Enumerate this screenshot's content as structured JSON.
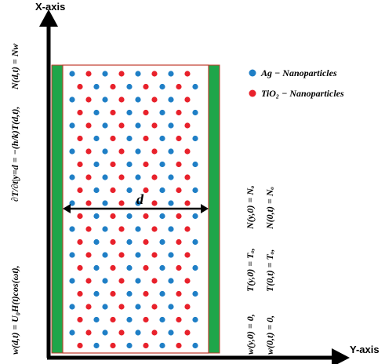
{
  "axes": {
    "x_label": "X-axis",
    "y_label": "Y-axis"
  },
  "gap_label": "d",
  "legend": [
    {
      "label": "Ag − Nanoparticles",
      "color": "#1f7fc6"
    },
    {
      "label": "TiO₂ − Nanoparticles",
      "color": "#e8212b"
    }
  ],
  "left_conditions": [
    "w(d,t) = U₀H(t)cos(ωt),",
    "∂T/∂t|y=d = −(h/k)T(d,t),",
    "N(d,t) = Nw"
  ],
  "right_conditions": [
    {
      "w": "w(y,0) = 0,",
      "T": "T(y,0) = Tₒ,",
      "N": "N(y,0) = Nₒ"
    },
    {
      "w": "w(0,t) = 0,",
      "T": "T(0,t) = Tₒ,",
      "N": "N(0,t) = Nₒ"
    }
  ],
  "colors": {
    "plate": "#1fa64a",
    "plate_border": "#c0392b",
    "ag": "#1f7fc6",
    "tio2": "#e8212b"
  }
}
